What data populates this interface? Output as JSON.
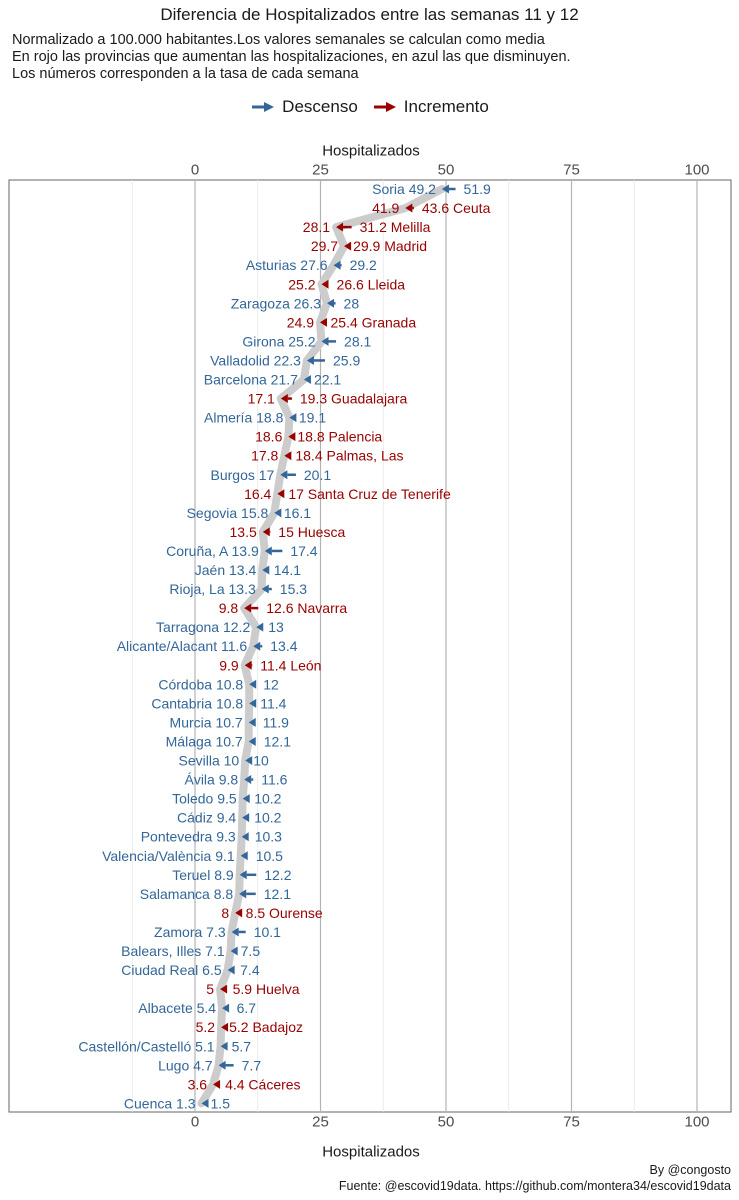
{
  "title": "Diferencia de Hospitalizados entre las semanas 11 y 12",
  "subtitle": [
    "Normalizado a 100.000 habitantes.Los valores semanales se calculan como media",
    "En rojo las provincias que aumentan las hospitalizaciones, en azul las que disminuyen.",
    "Los números corresponden a la tasa de cada semana"
  ],
  "legend": {
    "descenso": "Descenso",
    "incremento": "Incremento"
  },
  "colors": {
    "descenso": "#336699",
    "incremento": "#990000",
    "path": "#cccccc",
    "grid_major": "#b3b3b3",
    "grid_minor": "#e6e6e6",
    "panel_border": "#666666"
  },
  "caption": {
    "by": "By @congosto",
    "source": "Fuente: @escovid19data. https://github.com/montera34/escovid19data"
  },
  "chart_data": {
    "type": "arrow-dumbbell",
    "xlabel_top": "Hospitalizados",
    "xlabel_bottom": "Hospitalizados",
    "xlim": [
      -20,
      105
    ],
    "xticks": [
      0,
      25,
      50,
      75,
      100
    ],
    "grid": true,
    "legend_position": "top",
    "rows": [
      {
        "name": "Soria",
        "w11": "49.2",
        "w12": "51.9"
      },
      {
        "name": "Ceuta",
        "w11": "41.9",
        "w12": "43.6"
      },
      {
        "name": "Melilla",
        "w11": "28.1",
        "w12": "31.2"
      },
      {
        "name": "Madrid",
        "w11": "29.7",
        "w12": "29.9"
      },
      {
        "name": "Asturias",
        "w11": "27.6",
        "w12": "29.2"
      },
      {
        "name": "Lleida",
        "w11": "25.2",
        "w12": "26.6"
      },
      {
        "name": "Zaragoza",
        "w11": "26.3",
        "w12": "28"
      },
      {
        "name": "Granada",
        "w11": "24.9",
        "w12": "25.4"
      },
      {
        "name": "Girona",
        "w11": "25.2",
        "w12": "28.1"
      },
      {
        "name": "Valladolid",
        "w11": "22.3",
        "w12": "25.9"
      },
      {
        "name": "Barcelona",
        "w11": "21.7",
        "w12": "22.1"
      },
      {
        "name": "Guadalajara",
        "w11": "17.1",
        "w12": "19.3"
      },
      {
        "name": "Almería",
        "w11": "18.8",
        "w12": "19.1"
      },
      {
        "name": "Palencia",
        "w11": "18.6",
        "w12": "18.8"
      },
      {
        "name": "Palmas, Las",
        "w11": "17.8",
        "w12": "18.4"
      },
      {
        "name": "Burgos",
        "w11": "17",
        "w12": "20.1"
      },
      {
        "name": "Santa Cruz de Tenerife",
        "w11": "16.4",
        "w12": "17"
      },
      {
        "name": "Segovia",
        "w11": "15.8",
        "w12": "16.1"
      },
      {
        "name": "Huesca",
        "w11": "13.5",
        "w12": "15"
      },
      {
        "name": "Coruña, A",
        "w11": "13.9",
        "w12": "17.4"
      },
      {
        "name": "Jaén",
        "w11": "13.4",
        "w12": "14.1"
      },
      {
        "name": "Rioja, La",
        "w11": "13.3",
        "w12": "15.3"
      },
      {
        "name": "Navarra",
        "w11": "9.8",
        "w12": "12.6"
      },
      {
        "name": "Tarragona",
        "w11": "12.2",
        "w12": "13"
      },
      {
        "name": "Alicante/Alacant",
        "w11": "11.6",
        "w12": "13.4"
      },
      {
        "name": "León",
        "w11": "9.9",
        "w12": "11.4"
      },
      {
        "name": "Córdoba",
        "w11": "10.8",
        "w12": "12"
      },
      {
        "name": "Cantabria",
        "w11": "10.8",
        "w12": "11.4"
      },
      {
        "name": "Murcia",
        "w11": "10.7",
        "w12": "11.9"
      },
      {
        "name": "Málaga",
        "w11": "10.7",
        "w12": "12.1"
      },
      {
        "name": "Sevilla",
        "w11": "10",
        "w12": "10"
      },
      {
        "name": "Ávila",
        "w11": "9.8",
        "w12": "11.6"
      },
      {
        "name": "Toledo",
        "w11": "9.5",
        "w12": "10.2"
      },
      {
        "name": "Cádiz",
        "w11": "9.4",
        "w12": "10.2"
      },
      {
        "name": "Pontevedra",
        "w11": "9.3",
        "w12": "10.3"
      },
      {
        "name": "Valencia/València",
        "w11": "9.1",
        "w12": "10.5"
      },
      {
        "name": "Teruel",
        "w11": "8.9",
        "w12": "12.2"
      },
      {
        "name": "Salamanca",
        "w11": "8.8",
        "w12": "12.1"
      },
      {
        "name": "Ourense",
        "w11": "8",
        "w12": "8.5"
      },
      {
        "name": "Zamora",
        "w11": "7.3",
        "w12": "10.1"
      },
      {
        "name": "Balears, Illes",
        "w11": "7.1",
        "w12": "7.5"
      },
      {
        "name": "Ciudad Real",
        "w11": "6.5",
        "w12": "7.4"
      },
      {
        "name": "Huelva",
        "w11": "5",
        "w12": "5.9"
      },
      {
        "name": "Albacete",
        "w11": "5.4",
        "w12": "6.7"
      },
      {
        "name": "Badajoz",
        "w11": "5.2",
        "w12": "5.2"
      },
      {
        "name": "Castellón/Castelló",
        "w11": "5.1",
        "w12": "5.7"
      },
      {
        "name": "Lugo",
        "w11": "4.7",
        "w12": "7.7"
      },
      {
        "name": "Cáceres",
        "w11": "3.6",
        "w12": "4.4"
      },
      {
        "name": "Cuenca",
        "w11": "1.3",
        "w12": "1.5"
      }
    ],
    "increase_regions": [
      "Ceuta",
      "Melilla",
      "Madrid",
      "Lleida",
      "Granada",
      "Guadalajara",
      "Palencia",
      "Palmas, Las",
      "Santa Cruz de Tenerife",
      "Huesca",
      "Navarra",
      "León",
      "Ourense",
      "Huelva",
      "Badajoz",
      "Cáceres"
    ]
  }
}
